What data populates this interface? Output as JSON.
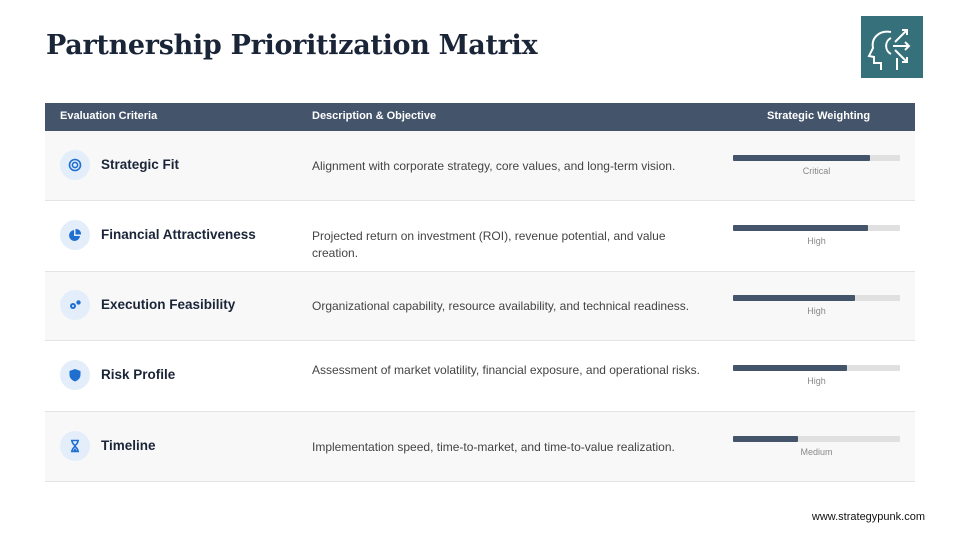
{
  "title": "Partnership Prioritization Matrix",
  "logo_icon": "head-arrows-icon",
  "headers": {
    "criteria": "Evaluation Criteria",
    "description": "Description & Objective",
    "weighting": "Strategic Weighting"
  },
  "rows": [
    {
      "icon": "target-icon",
      "name": "Strategic Fit",
      "description": "Alignment with corporate strategy, core values, and long-term vision.",
      "level": "Critical",
      "weight_pct": 82
    },
    {
      "icon": "pie-chart-icon",
      "name": "Financial Attractiveness",
      "description": "Projected return on investment (ROI), revenue potential, and value creation.",
      "level": "High",
      "weight_pct": 81
    },
    {
      "icon": "gears-icon",
      "name": "Execution Feasibility",
      "description": "Organizational capability, resource availability, and technical readiness.",
      "level": "High",
      "weight_pct": 73
    },
    {
      "icon": "shield-icon",
      "name": "Risk Profile",
      "description": "Assessment of market volatility, financial exposure, and operational risks.",
      "level": "High",
      "weight_pct": 68
    },
    {
      "icon": "hourglass-icon",
      "name": "Timeline",
      "description": "Implementation speed, time-to-market, and time-to-value realization.",
      "level": "Medium",
      "weight_pct": 39
    }
  ],
  "colors": {
    "header": "#44546b",
    "icon": "#1f6fd1",
    "logo_bg": "#36707a"
  },
  "footer": "www.strategypunk.com"
}
